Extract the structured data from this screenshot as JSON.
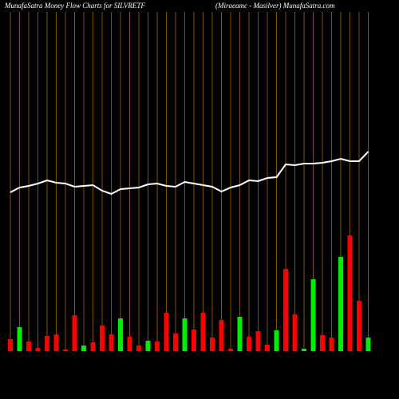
{
  "chart_data": {
    "type": "bar",
    "title": "MunafaSatra  Money Flow  Charts for SILVRETF",
    "subtitle": "(Miraeamc -  Masilver) MunafaSatra.com",
    "categories": [
      null,
      null,
      null,
      null,
      null,
      null,
      null,
      null,
      null,
      null,
      null,
      null,
      null,
      null,
      null,
      null,
      null,
      null,
      null,
      null,
      null,
      null,
      null,
      null,
      null,
      null,
      null,
      null,
      null,
      null,
      null,
      null,
      null,
      null,
      null,
      null,
      null,
      null,
      null,
      null
    ],
    "ylim": [
      0,
      440
    ],
    "grid": true,
    "grid_color": "#a0660a",
    "bar_colors": [
      "#ff0000",
      "#00ee00",
      "#ff0000",
      "#ff0000",
      "#ff0000",
      "#ff0000",
      "#ff0000",
      "#ff0000",
      "#00ee00",
      "#ff0000",
      "#ff0000",
      "#ff0000",
      "#00ee00",
      "#ff0000",
      "#ff0000",
      "#00ee00",
      "#ff0000",
      "#ff0000",
      "#ff0000",
      "#00ee00",
      "#ff0000",
      "#ff0000",
      "#ff0000",
      "#ff0000",
      "#ff0000",
      "#00ee00",
      "#ff0000",
      "#ff0000",
      "#ff0000",
      "#00ee00",
      "#ff0000",
      "#ff0000",
      "#00ee00",
      "#00ee00",
      "#ff0000",
      "#ff0000",
      "#00ee00",
      "#ff0000",
      "#ff0000",
      "#00ee00"
    ],
    "values": [
      15,
      30,
      12,
      4,
      19,
      21,
      2,
      45,
      7,
      11,
      32,
      21,
      41,
      18,
      7,
      13,
      12,
      48,
      22,
      41,
      27,
      48,
      17,
      39,
      3,
      43,
      18,
      25,
      8,
      26,
      103,
      46,
      3,
      90,
      20,
      17,
      118,
      145,
      63,
      17
    ],
    "line": {
      "color": "#ffffff",
      "values": [
        199,
        205,
        207,
        210,
        214,
        211,
        210,
        206,
        207,
        208,
        201,
        197,
        203,
        204,
        205,
        209,
        210,
        207,
        206,
        212,
        210,
        208,
        206,
        200,
        205,
        208,
        214,
        213,
        217,
        218,
        234,
        233,
        235,
        235,
        236,
        238,
        241,
        238,
        238,
        250
      ]
    }
  }
}
